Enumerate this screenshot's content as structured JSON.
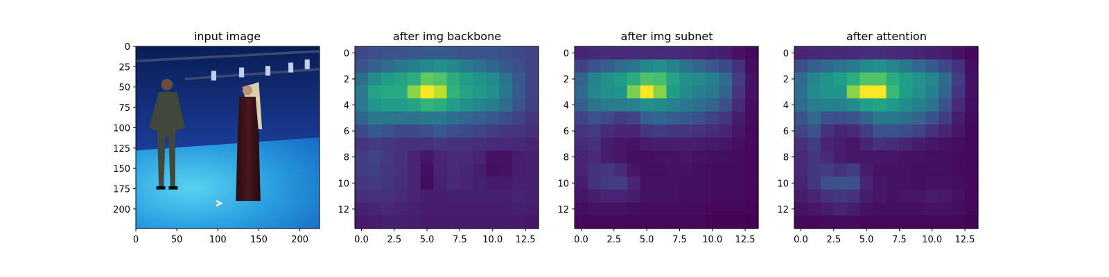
{
  "chart_data": [
    {
      "type": "image",
      "title": "input image",
      "x_ticks": [
        "0",
        "50",
        "100",
        "150",
        "200"
      ],
      "y_ticks": [
        "0",
        "25",
        "50",
        "75",
        "100",
        "125",
        "150",
        "175",
        "200"
      ],
      "extent": [
        224,
        224
      ]
    },
    {
      "type": "heatmap",
      "title": "after img backbone",
      "x_ticks": [
        "0.0",
        "2.5",
        "5.0",
        "7.5",
        "10.0",
        "12.5"
      ],
      "y_ticks": [
        "0",
        "2",
        "4",
        "6",
        "8",
        "10",
        "12"
      ],
      "grid_size": [
        14,
        14
      ],
      "values": [
        [
          0.22,
          0.24,
          0.25,
          0.26,
          0.27,
          0.28,
          0.28,
          0.27,
          0.26,
          0.25,
          0.25,
          0.24,
          0.22,
          0.2
        ],
        [
          0.25,
          0.3,
          0.35,
          0.4,
          0.44,
          0.48,
          0.5,
          0.47,
          0.42,
          0.37,
          0.33,
          0.28,
          0.24,
          0.2
        ],
        [
          0.35,
          0.48,
          0.55,
          0.58,
          0.62,
          0.75,
          0.72,
          0.62,
          0.56,
          0.52,
          0.48,
          0.38,
          0.27,
          0.2
        ],
        [
          0.42,
          0.58,
          0.6,
          0.6,
          0.82,
          1.0,
          0.9,
          0.65,
          0.58,
          0.54,
          0.5,
          0.4,
          0.28,
          0.2
        ],
        [
          0.4,
          0.52,
          0.55,
          0.55,
          0.58,
          0.65,
          0.62,
          0.55,
          0.5,
          0.46,
          0.42,
          0.35,
          0.26,
          0.19
        ],
        [
          0.32,
          0.4,
          0.4,
          0.38,
          0.38,
          0.4,
          0.4,
          0.36,
          0.33,
          0.3,
          0.28,
          0.24,
          0.2,
          0.16
        ],
        [
          0.22,
          0.28,
          0.26,
          0.22,
          0.22,
          0.24,
          0.28,
          0.24,
          0.22,
          0.2,
          0.18,
          0.16,
          0.15,
          0.13
        ],
        [
          0.15,
          0.18,
          0.16,
          0.14,
          0.14,
          0.14,
          0.16,
          0.14,
          0.14,
          0.13,
          0.12,
          0.11,
          0.11,
          0.1
        ],
        [
          0.18,
          0.2,
          0.17,
          0.14,
          0.1,
          0.06,
          0.1,
          0.12,
          0.12,
          0.1,
          0.05,
          0.05,
          0.08,
          0.09
        ],
        [
          0.18,
          0.19,
          0.16,
          0.14,
          0.1,
          0.04,
          0.1,
          0.12,
          0.1,
          0.08,
          0.04,
          0.05,
          0.08,
          0.09
        ],
        [
          0.16,
          0.17,
          0.15,
          0.13,
          0.1,
          0.03,
          0.09,
          0.11,
          0.1,
          0.09,
          0.07,
          0.07,
          0.09,
          0.09
        ],
        [
          0.13,
          0.14,
          0.14,
          0.12,
          0.1,
          0.08,
          0.08,
          0.09,
          0.09,
          0.09,
          0.09,
          0.09,
          0.1,
          0.09
        ],
        [
          0.09,
          0.1,
          0.11,
          0.1,
          0.09,
          0.08,
          0.08,
          0.08,
          0.08,
          0.08,
          0.08,
          0.08,
          0.09,
          0.08
        ],
        [
          0.07,
          0.08,
          0.09,
          0.09,
          0.08,
          0.07,
          0.07,
          0.07,
          0.07,
          0.07,
          0.07,
          0.07,
          0.07,
          0.06
        ]
      ]
    },
    {
      "type": "heatmap",
      "title": "after img subnet",
      "x_ticks": [
        "0.0",
        "2.5",
        "5.0",
        "7.5",
        "10.0",
        "12.5"
      ],
      "y_ticks": [
        "0",
        "2",
        "4",
        "6",
        "8",
        "10",
        "12"
      ],
      "grid_size": [
        14,
        14
      ],
      "values": [
        [
          0.1,
          0.11,
          0.12,
          0.12,
          0.12,
          0.12,
          0.12,
          0.12,
          0.11,
          0.1,
          0.09,
          0.08,
          0.05,
          0.02
        ],
        [
          0.2,
          0.26,
          0.3,
          0.35,
          0.4,
          0.46,
          0.5,
          0.45,
          0.38,
          0.32,
          0.27,
          0.22,
          0.14,
          0.04
        ],
        [
          0.32,
          0.44,
          0.5,
          0.55,
          0.62,
          0.72,
          0.7,
          0.58,
          0.5,
          0.48,
          0.44,
          0.34,
          0.18,
          0.05
        ],
        [
          0.34,
          0.46,
          0.5,
          0.52,
          0.8,
          1.0,
          0.82,
          0.55,
          0.48,
          0.44,
          0.4,
          0.32,
          0.16,
          0.05
        ],
        [
          0.3,
          0.38,
          0.42,
          0.42,
          0.44,
          0.5,
          0.48,
          0.44,
          0.4,
          0.36,
          0.32,
          0.24,
          0.12,
          0.04
        ],
        [
          0.2,
          0.26,
          0.22,
          0.18,
          0.2,
          0.3,
          0.33,
          0.3,
          0.28,
          0.24,
          0.2,
          0.16,
          0.08,
          0.03
        ],
        [
          0.15,
          0.18,
          0.12,
          0.1,
          0.1,
          0.16,
          0.18,
          0.16,
          0.16,
          0.14,
          0.12,
          0.1,
          0.06,
          0.02
        ],
        [
          0.12,
          0.14,
          0.08,
          0.06,
          0.05,
          0.07,
          0.08,
          0.08,
          0.08,
          0.08,
          0.07,
          0.06,
          0.04,
          0.02
        ],
        [
          0.1,
          0.12,
          0.08,
          0.06,
          0.04,
          0.04,
          0.05,
          0.05,
          0.06,
          0.05,
          0.04,
          0.04,
          0.03,
          0.02
        ],
        [
          0.1,
          0.14,
          0.16,
          0.12,
          0.06,
          0.04,
          0.04,
          0.05,
          0.05,
          0.04,
          0.03,
          0.03,
          0.03,
          0.02
        ],
        [
          0.08,
          0.14,
          0.18,
          0.18,
          0.1,
          0.05,
          0.05,
          0.05,
          0.04,
          0.04,
          0.03,
          0.03,
          0.03,
          0.02
        ],
        [
          0.06,
          0.08,
          0.1,
          0.1,
          0.08,
          0.05,
          0.05,
          0.05,
          0.04,
          0.04,
          0.03,
          0.03,
          0.03,
          0.02
        ],
        [
          0.04,
          0.05,
          0.05,
          0.05,
          0.04,
          0.03,
          0.03,
          0.03,
          0.03,
          0.03,
          0.02,
          0.02,
          0.02,
          0.01
        ],
        [
          0.02,
          0.02,
          0.02,
          0.02,
          0.02,
          0.02,
          0.02,
          0.02,
          0.02,
          0.02,
          0.01,
          0.01,
          0.01,
          0.0
        ]
      ]
    },
    {
      "type": "heatmap",
      "title": "after attention",
      "x_ticks": [
        "0.0",
        "2.5",
        "5.0",
        "7.5",
        "10.0",
        "12.5"
      ],
      "y_ticks": [
        "0",
        "2",
        "4",
        "6",
        "8",
        "10",
        "12"
      ],
      "grid_size": [
        14,
        14
      ],
      "values": [
        [
          0.1,
          0.11,
          0.12,
          0.12,
          0.12,
          0.13,
          0.13,
          0.12,
          0.11,
          0.1,
          0.09,
          0.08,
          0.05,
          0.02
        ],
        [
          0.24,
          0.3,
          0.34,
          0.38,
          0.42,
          0.48,
          0.5,
          0.46,
          0.4,
          0.34,
          0.28,
          0.22,
          0.14,
          0.04
        ],
        [
          0.34,
          0.46,
          0.52,
          0.56,
          0.62,
          0.72,
          0.72,
          0.62,
          0.56,
          0.52,
          0.46,
          0.34,
          0.18,
          0.05
        ],
        [
          0.36,
          0.48,
          0.52,
          0.52,
          0.82,
          1.0,
          1.0,
          0.68,
          0.56,
          0.5,
          0.44,
          0.32,
          0.16,
          0.05
        ],
        [
          0.34,
          0.42,
          0.44,
          0.44,
          0.48,
          0.56,
          0.58,
          0.54,
          0.48,
          0.44,
          0.38,
          0.26,
          0.12,
          0.04
        ],
        [
          0.26,
          0.34,
          0.26,
          0.24,
          0.26,
          0.32,
          0.4,
          0.4,
          0.36,
          0.32,
          0.26,
          0.18,
          0.08,
          0.03
        ],
        [
          0.2,
          0.26,
          0.14,
          0.1,
          0.12,
          0.18,
          0.26,
          0.26,
          0.24,
          0.2,
          0.14,
          0.1,
          0.06,
          0.02
        ],
        [
          0.14,
          0.18,
          0.1,
          0.08,
          0.06,
          0.1,
          0.14,
          0.12,
          0.1,
          0.08,
          0.06,
          0.05,
          0.04,
          0.02
        ],
        [
          0.12,
          0.16,
          0.12,
          0.08,
          0.06,
          0.06,
          0.06,
          0.06,
          0.05,
          0.05,
          0.04,
          0.04,
          0.03,
          0.02
        ],
        [
          0.12,
          0.16,
          0.18,
          0.14,
          0.18,
          0.08,
          0.05,
          0.05,
          0.05,
          0.04,
          0.04,
          0.04,
          0.03,
          0.02
        ],
        [
          0.1,
          0.16,
          0.24,
          0.26,
          0.24,
          0.1,
          0.06,
          0.05,
          0.05,
          0.04,
          0.05,
          0.05,
          0.04,
          0.02
        ],
        [
          0.08,
          0.1,
          0.14,
          0.16,
          0.14,
          0.08,
          0.06,
          0.05,
          0.06,
          0.06,
          0.08,
          0.07,
          0.05,
          0.02
        ],
        [
          0.05,
          0.06,
          0.08,
          0.1,
          0.08,
          0.05,
          0.04,
          0.04,
          0.04,
          0.04,
          0.05,
          0.05,
          0.04,
          0.02
        ],
        [
          0.02,
          0.02,
          0.03,
          0.03,
          0.03,
          0.02,
          0.02,
          0.02,
          0.02,
          0.02,
          0.02,
          0.02,
          0.02,
          0.01
        ]
      ]
    }
  ]
}
